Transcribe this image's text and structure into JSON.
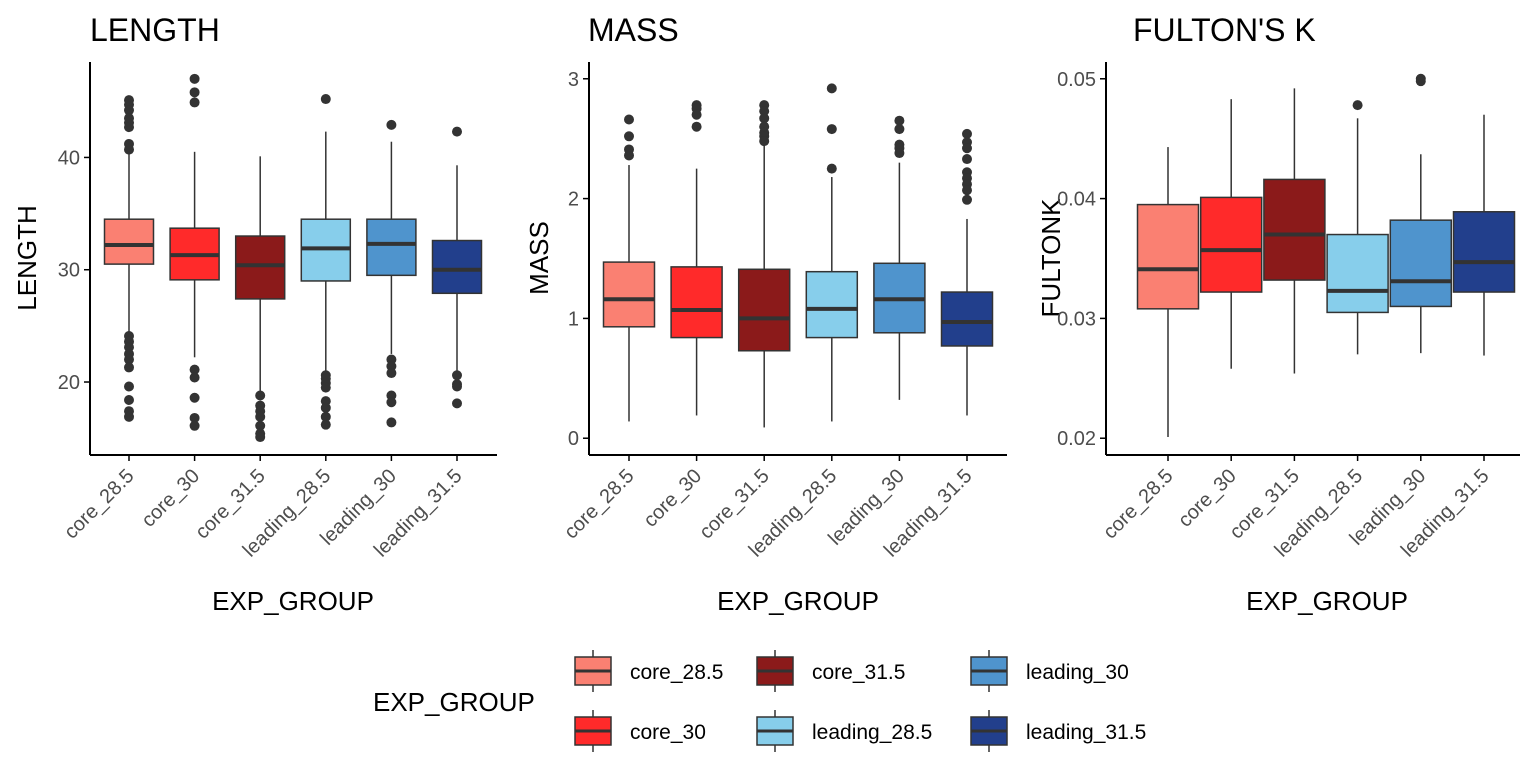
{
  "chart_data": [
    {
      "type": "box",
      "title": "LENGTH",
      "xlabel": "EXP_GROUP",
      "ylabel": "LENGTH",
      "ylim": [
        13.5,
        48.5
      ],
      "yticks": [
        20,
        30,
        40
      ],
      "categories": [
        "core_28.5",
        "core_30",
        "core_31.5",
        "leading_28.5",
        "leading_30",
        "leading_31.5"
      ],
      "boxes": [
        {
          "group": "core_28.5",
          "whisker_low": 24.5,
          "q1": 30.5,
          "median": 32.2,
          "q3": 34.5,
          "whisker_high": 40.5,
          "outliers": [
            45.1,
            44.7,
            44.2,
            43.5,
            43.1,
            42.7,
            41.2,
            40.7,
            24.1,
            23.6,
            23.1,
            22.5,
            22.0,
            21.3,
            19.6,
            18.4,
            17.4,
            16.9
          ]
        },
        {
          "group": "core_30",
          "whisker_low": 22.2,
          "q1": 29.1,
          "median": 31.3,
          "q3": 33.7,
          "whisker_high": 40.5,
          "outliers": [
            47.0,
            45.8,
            44.9,
            21.1,
            20.4,
            18.6,
            16.8,
            16.1
          ]
        },
        {
          "group": "core_31.5",
          "whisker_low": 19.0,
          "q1": 27.4,
          "median": 30.4,
          "q3": 33.0,
          "whisker_high": 40.1,
          "outliers": [
            18.8,
            17.9,
            17.4,
            16.9,
            16.1,
            15.4,
            15.1
          ]
        },
        {
          "group": "leading_28.5",
          "whisker_low": 21.0,
          "q1": 29.0,
          "median": 31.9,
          "q3": 34.5,
          "whisker_high": 42.3,
          "outliers": [
            45.2,
            20.6,
            20.3,
            19.9,
            19.5,
            18.3,
            17.7,
            16.9,
            16.2
          ]
        },
        {
          "group": "leading_30",
          "whisker_low": 22.5,
          "q1": 29.5,
          "median": 32.3,
          "q3": 34.5,
          "whisker_high": 41.4,
          "outliers": [
            42.9,
            22.0,
            21.4,
            20.8,
            18.8,
            18.2,
            16.4
          ]
        },
        {
          "group": "leading_31.5",
          "whisker_low": 21.0,
          "q1": 27.9,
          "median": 30.0,
          "q3": 32.6,
          "whisker_high": 39.3,
          "outliers": [
            42.3,
            20.6,
            19.8,
            19.6,
            18.1
          ]
        }
      ]
    },
    {
      "type": "box",
      "title": "MASS",
      "xlabel": "EXP_GROUP",
      "ylabel": "MASS",
      "ylim": [
        -0.14,
        3.14
      ],
      "yticks": [
        0,
        1,
        2,
        3
      ],
      "categories": [
        "core_28.5",
        "core_30",
        "core_31.5",
        "leading_28.5",
        "leading_30",
        "leading_31.5"
      ],
      "boxes": [
        {
          "group": "core_28.5",
          "whisker_low": 0.14,
          "q1": 0.93,
          "median": 1.16,
          "q3": 1.47,
          "whisker_high": 2.28,
          "outliers": [
            2.66,
            2.52,
            2.41,
            2.36
          ]
        },
        {
          "group": "core_30",
          "whisker_low": 0.19,
          "q1": 0.84,
          "median": 1.07,
          "q3": 1.43,
          "whisker_high": 2.25,
          "outliers": [
            2.78,
            2.75,
            2.7,
            2.6
          ]
        },
        {
          "group": "core_31.5",
          "whisker_low": 0.09,
          "q1": 0.73,
          "median": 1.0,
          "q3": 1.41,
          "whisker_high": 2.45,
          "outliers": [
            2.78,
            2.73,
            2.67,
            2.6,
            2.55,
            2.52,
            2.48
          ]
        },
        {
          "group": "leading_28.5",
          "whisker_low": 0.14,
          "q1": 0.84,
          "median": 1.08,
          "q3": 1.39,
          "whisker_high": 2.18,
          "outliers": [
            2.92,
            2.58,
            2.25
          ]
        },
        {
          "group": "leading_30",
          "whisker_low": 0.32,
          "q1": 0.88,
          "median": 1.16,
          "q3": 1.46,
          "whisker_high": 2.3,
          "outliers": [
            2.65,
            2.58,
            2.45,
            2.42,
            2.38
          ]
        },
        {
          "group": "leading_31.5",
          "whisker_low": 0.19,
          "q1": 0.77,
          "median": 0.97,
          "q3": 1.22,
          "whisker_high": 1.83,
          "outliers": [
            2.54,
            2.47,
            2.42,
            2.33,
            2.22,
            2.17,
            2.12,
            2.07,
            1.99
          ]
        }
      ]
    },
    {
      "type": "box",
      "title": "FULTON'S K",
      "xlabel": "EXP_GROUP",
      "ylabel": "FULTONK",
      "ylim": [
        0.0186,
        0.0514
      ],
      "yticks": [
        0.02,
        0.03,
        0.04,
        0.05
      ],
      "ytick_labels": [
        "0.02",
        "0.03",
        "0.04",
        "0.05"
      ],
      "categories": [
        "core_28.5",
        "core_30",
        "core_31.5",
        "leading_28.5",
        "leading_30",
        "leading_31.5"
      ],
      "boxes": [
        {
          "group": "core_28.5",
          "whisker_low": 0.0201,
          "q1": 0.0308,
          "median": 0.0341,
          "q3": 0.0395,
          "whisker_high": 0.0443,
          "outliers": []
        },
        {
          "group": "core_30",
          "whisker_low": 0.0258,
          "q1": 0.0322,
          "median": 0.0357,
          "q3": 0.0401,
          "whisker_high": 0.0483,
          "outliers": []
        },
        {
          "group": "core_31.5",
          "whisker_low": 0.0254,
          "q1": 0.0332,
          "median": 0.037,
          "q3": 0.0416,
          "whisker_high": 0.0492,
          "outliers": []
        },
        {
          "group": "leading_28.5",
          "whisker_low": 0.027,
          "q1": 0.0305,
          "median": 0.0323,
          "q3": 0.037,
          "whisker_high": 0.0467,
          "outliers": [
            0.0478
          ]
        },
        {
          "group": "leading_30",
          "whisker_low": 0.0271,
          "q1": 0.031,
          "median": 0.0331,
          "q3": 0.0382,
          "whisker_high": 0.0437,
          "outliers": [
            0.05,
            0.0498
          ]
        },
        {
          "group": "leading_31.5",
          "whisker_low": 0.0269,
          "q1": 0.0322,
          "median": 0.0347,
          "q3": 0.0389,
          "whisker_high": 0.047,
          "outliers": []
        }
      ]
    }
  ],
  "legend": {
    "title": "EXP_GROUP",
    "placement": "bottom",
    "items": [
      {
        "label": "core_28.5",
        "color": "#fa8072"
      },
      {
        "label": "core_30",
        "color": "#ff2a2a"
      },
      {
        "label": "core_31.5",
        "color": "#8b1a1a"
      },
      {
        "label": "leading_28.5",
        "color": "#87ceeb"
      },
      {
        "label": "leading_30",
        "color": "#4f94cd"
      },
      {
        "label": "leading_31.5",
        "color": "#223f8c"
      }
    ]
  },
  "colors": {
    "axis": "#000000",
    "tick_text": "#4d4d4d",
    "box_outline": "#333333",
    "median": "#333333",
    "outlier": "#333333"
  }
}
